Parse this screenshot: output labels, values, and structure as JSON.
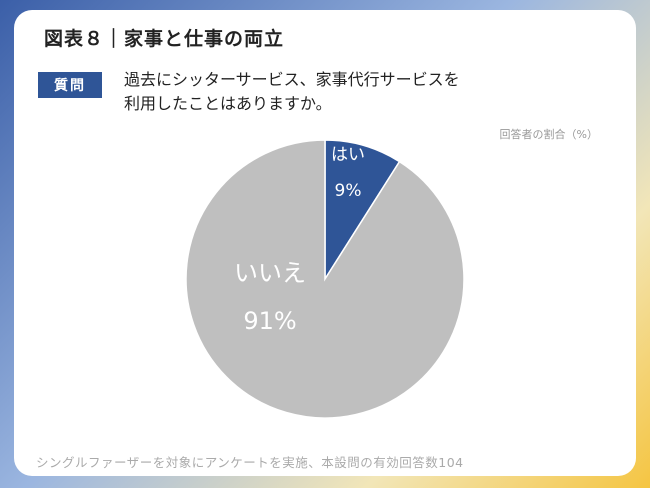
{
  "header": {
    "title": "図表８｜家事と仕事の両立"
  },
  "question": {
    "badge": "質問",
    "line1": "過去にシッターサービス、家事代行サービスを",
    "line2": "利用したことはありますか。"
  },
  "unit_label": "回答者の割合（%）",
  "footnote": "シングルファーザーを対象にアンケートを実施、本設問の有効回答数104",
  "colors": {
    "yes": "#2f5597",
    "no": "#bfbfbf",
    "badge": "#2f5597"
  },
  "chart_data": {
    "type": "pie",
    "title": "",
    "slices": [
      {
        "label": "はい",
        "value": 9,
        "value_label": "9%",
        "color": "#2f5597"
      },
      {
        "label": "いいえ",
        "value": 91,
        "value_label": "91%",
        "color": "#bfbfbf"
      }
    ],
    "unit": "%"
  }
}
